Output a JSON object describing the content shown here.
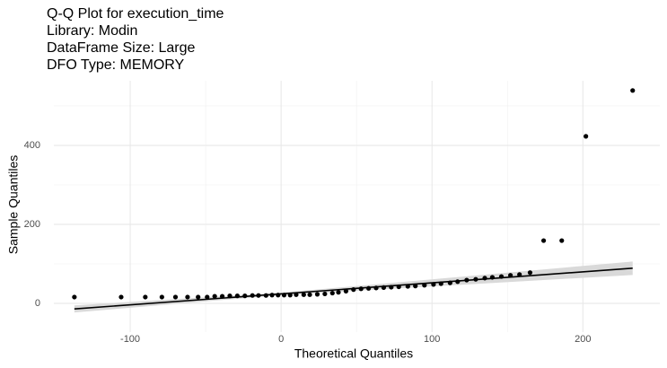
{
  "chart_data": {
    "type": "qq",
    "title": [
      "Q-Q Plot for execution_time",
      "Library: Modin",
      "DataFrame Size: Large",
      "DFO Type: MEMORY"
    ],
    "x_label": "Theoretical Quantiles",
    "y_label": "Sample Quantiles",
    "x": [
      -137,
      -106,
      -90,
      -79,
      -70,
      -62,
      -55,
      -49,
      -44,
      -39,
      -34,
      -29,
      -24,
      -19,
      -15,
      -10,
      -6,
      -2,
      2,
      6,
      10,
      15,
      19,
      24,
      29,
      34,
      38,
      43,
      48,
      53,
      58,
      63,
      68,
      73,
      78,
      84,
      89,
      95,
      101,
      106,
      112,
      117,
      123,
      129,
      135,
      140,
      146,
      152,
      158,
      165,
      174,
      186,
      202,
      233
    ],
    "y": [
      16,
      16,
      16,
      16,
      16,
      16,
      16,
      16,
      18,
      18,
      19,
      19,
      19,
      20,
      20,
      20,
      21,
      21,
      21,
      21,
      22,
      22,
      22,
      23,
      24,
      26,
      28,
      31,
      35,
      37,
      38,
      39,
      40,
      41,
      42,
      43,
      44,
      46,
      48,
      50,
      52,
      55,
      59,
      61,
      64,
      66,
      68,
      71,
      73,
      78,
      159,
      159,
      423,
      539
    ],
    "point_color": "#000000",
    "reference_line": {
      "x": [
        -137,
        233
      ],
      "y": [
        -14,
        89
      ]
    },
    "band": {
      "x": [
        -137,
        0,
        233
      ],
      "lower": [
        -23,
        21,
        72
      ],
      "upper": [
        -5,
        27,
        106
      ]
    },
    "band_color": "#d9d9d9",
    "xlim": [
      -150.6,
      251
    ],
    "ylim": [
      -72.7,
      563.6
    ],
    "xticks": [
      -100,
      0,
      100,
      200
    ],
    "yticks": [
      0,
      200,
      400
    ],
    "minor_xticks": [
      -50,
      50,
      150
    ],
    "minor_yticks": [
      100,
      300,
      500
    ],
    "grid": true
  }
}
